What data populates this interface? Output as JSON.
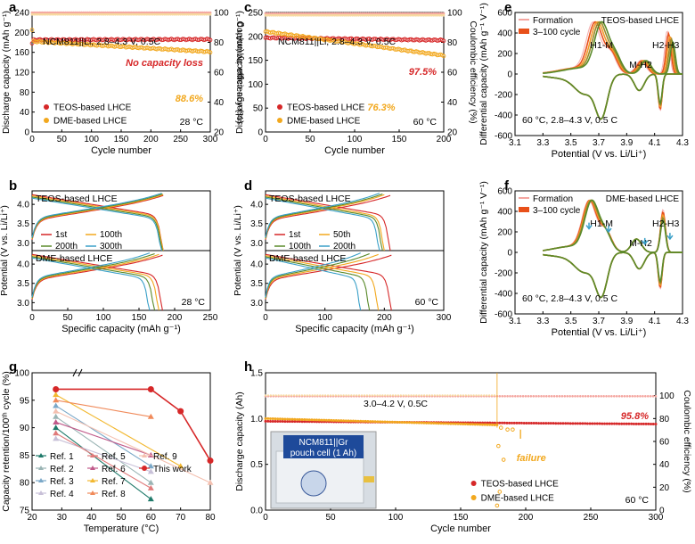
{
  "colors": {
    "red": "#d62728",
    "orange": "#f2a81e",
    "pink": "#f4a6a0",
    "green": "#5a8a2a",
    "gridgray": "#e6e6e6",
    "dashedgray": "#888888",
    "olive": "#9a9a2a",
    "cyan": "#3aa0c8"
  },
  "chart_data": [
    {
      "id": "a",
      "panel_label": "a",
      "type": "scatter",
      "title": "",
      "cell_text": "NCM811||Li, 2.8–4.3 V, 0.5C",
      "annotation_red": "No capacity loss",
      "annotation_orange": "88.6%",
      "temp": "28 °C",
      "xlabel": "Cycle number",
      "ylabel": "Discharge capacity (mAh g⁻¹)",
      "y2label": "Coulombic efficiency (%)",
      "xlim": [
        0,
        300
      ],
      "xticks": [
        0,
        50,
        100,
        150,
        200,
        250,
        300
      ],
      "ylim": [
        0,
        240
      ],
      "yticks": [
        0,
        40,
        80,
        120,
        160,
        200,
        240
      ],
      "y2lim": [
        20,
        100
      ],
      "y2ticks": [
        20,
        40,
        60,
        80,
        100
      ],
      "series": [
        {
          "name": "TEOS-based LHCE",
          "color": "red",
          "start": 185,
          "end": 186,
          "first": 178
        },
        {
          "name": "DME-based LHCE",
          "color": "orange",
          "start": 182,
          "end": 161,
          "first": 205
        }
      ],
      "ce": {
        "value": 99.6
      }
    },
    {
      "id": "c",
      "panel_label": "c",
      "type": "scatter",
      "cell_text": "NCM811||Li, 2.8–4.3 V, 0.5C",
      "annotation_red": "97.5%",
      "annotation_orange": "76.3%",
      "temp": "60 °C",
      "xlabel": "Cycle number",
      "ylabel": "Discharge capacity (mAh g⁻¹)",
      "y2label": "Coulombic efficiency (%)",
      "xlim": [
        0,
        200
      ],
      "xticks": [
        0,
        50,
        100,
        150,
        200
      ],
      "ylim": [
        0,
        250
      ],
      "yticks": [
        0,
        50,
        100,
        150,
        200,
        250
      ],
      "y2lim": [
        20,
        100
      ],
      "y2ticks": [
        20,
        40,
        60,
        80,
        100
      ],
      "series": [
        {
          "name": "TEOS-based LHCE",
          "color": "red",
          "start": 197,
          "end": 192
        },
        {
          "name": "DME-based LHCE",
          "color": "orange",
          "start": 210,
          "end": 160
        }
      ],
      "ce": {
        "value": 99.0
      }
    },
    {
      "id": "e",
      "panel_label": "e",
      "type": "line",
      "cell_text": "60 °C, 2.8–4.3 V, 0.5 C",
      "legend_title": "TEOS-based LHCE",
      "legend_formation": "Formation",
      "legend_cycles": "3–100 cycle",
      "peaks": [
        "H1-M",
        "M-H2",
        "H2-H3"
      ],
      "xlabel": "Potential (V vs. Li/Li⁺)",
      "ylabel": "Differential capacity (mAh g⁻¹ V⁻¹)",
      "xlim": [
        3.1,
        4.3
      ],
      "xticks": [
        "3.1",
        "3.3",
        "3.5",
        "3.7",
        "3.9",
        "4.1",
        "4.3"
      ],
      "ylim": [
        -600,
        600
      ],
      "yticks": [
        -600,
        -400,
        -200,
        0,
        200,
        400,
        600
      ]
    },
    {
      "id": "f",
      "panel_label": "f",
      "type": "line",
      "cell_text": "60 °C, 2.8–4.3 V, 0.5 C",
      "legend_title": "DME-based LHCE",
      "legend_formation": "Formation",
      "legend_cycles": "3–100 cycle",
      "peaks": [
        "H1-M",
        "M-H2",
        "H2-H3"
      ],
      "xlabel": "Potential (V vs. Li/Li⁺)",
      "ylabel": "Differential capacity (mAh g⁻¹ V⁻¹)",
      "xlim": [
        3.1,
        4.3
      ],
      "xticks": [
        "3.1",
        "3.3",
        "3.5",
        "3.7",
        "3.9",
        "4.1",
        "4.3"
      ],
      "ylim": [
        -600,
        600
      ],
      "yticks": [
        -600,
        -400,
        -200,
        0,
        200,
        400,
        600
      ]
    },
    {
      "id": "b",
      "panel_label": "b",
      "type": "line",
      "top_label": "TEOS-based LHCE",
      "bottom_label": "DME-based LHCE",
      "temp": "28 °C",
      "legend": [
        "1st",
        "100th",
        "200th",
        "300th"
      ],
      "xlabel": "Specific capacity (mAh g⁻¹)",
      "ylabel": "Potential (V vs. Li/Li⁺)",
      "xlim": [
        0,
        250
      ],
      "xticks": [
        0,
        50,
        100,
        150,
        200,
        250
      ],
      "yticks_top": [
        "3.0",
        "3.5",
        "4.0"
      ],
      "yticks_bottom": [
        "3.0",
        "3.5",
        "4.0"
      ],
      "top_caps": [
        184,
        184,
        183,
        182
      ],
      "bottom_caps": [
        183,
        178,
        172,
        165
      ]
    },
    {
      "id": "d",
      "panel_label": "d",
      "type": "line",
      "top_label": "TEOS-based LHCE",
      "bottom_label": "DME-based LHCE",
      "temp": "60 °C",
      "legend": [
        "1st",
        "50th",
        "100th",
        "200th"
      ],
      "xlabel": "Specific capacity (mAh g⁻¹)",
      "ylabel": "Potential (V vs. Li/Li⁺)",
      "xlim": [
        0,
        300
      ],
      "xticks": [
        0,
        100,
        200,
        300
      ],
      "yticks_top": [
        "3.0",
        "3.5",
        "4.0"
      ],
      "yticks_bottom": [
        "3.0",
        "3.5",
        "4.0"
      ],
      "top_caps": [
        210,
        200,
        197,
        192
      ],
      "bottom_caps": [
        212,
        190,
        175,
        160
      ]
    },
    {
      "id": "g",
      "panel_label": "g",
      "type": "scatter",
      "xlabel": "Temperature (°C)",
      "ylabel": "Capacity retention/100ᵗʰ cycle (%)",
      "xlim": [
        20,
        80
      ],
      "xticks": [
        20,
        30,
        40,
        50,
        60,
        70,
        80
      ],
      "ylim": [
        75,
        100
      ],
      "yticks": [
        75,
        80,
        85,
        90,
        95,
        100
      ],
      "series": [
        {
          "name": "Ref. 1",
          "color": "#1f7a6a",
          "points": [
            [
              28,
              90
            ],
            [
              60,
              77
            ]
          ]
        },
        {
          "name": "Ref. 2",
          "color": "#9ab4b4",
          "points": [
            [
              28,
              92
            ],
            [
              60,
              80
            ]
          ]
        },
        {
          "name": "Ref. 3",
          "color": "#7aa8c8",
          "points": [
            [
              28,
              94
            ],
            [
              60,
              83
            ]
          ]
        },
        {
          "name": "Ref. 4",
          "color": "#c8c0d8",
          "points": [
            [
              28,
              88
            ],
            [
              60,
              82
            ]
          ]
        },
        {
          "name": "Ref. 5",
          "color": "#e07a7a",
          "points": [
            [
              28,
              89
            ],
            [
              60,
              79
            ]
          ]
        },
        {
          "name": "Ref. 6",
          "color": "#c05a8a",
          "points": [
            [
              28,
              91
            ],
            [
              60,
              85
            ]
          ]
        },
        {
          "name": "Ref. 7",
          "color": "#f2b830",
          "points": [
            [
              28,
              96
            ],
            [
              70,
              83
            ]
          ]
        },
        {
          "name": "Ref. 8",
          "color": "#f08a5a",
          "points": [
            [
              28,
              95
            ],
            [
              60,
              92
            ]
          ]
        },
        {
          "name": "Ref. 9",
          "color": "#f4c0b0",
          "points": [
            [
              28,
              93
            ],
            [
              80,
              80
            ]
          ]
        },
        {
          "name": "This work",
          "color": "#d62728",
          "points": [
            [
              28,
              97
            ],
            [
              60,
              97
            ],
            [
              70,
              93
            ],
            [
              80,
              84
            ]
          ]
        }
      ]
    },
    {
      "id": "h",
      "panel_label": "h",
      "type": "scatter",
      "cell_text": "3.0–4.2 V, 0.5C",
      "annotation_red": "95.8%",
      "annotation_failure": "failure",
      "inset_title": "NCM811||Gr pouch cell (1 Ah)",
      "temp": "60 °C",
      "xlabel": "Cycle number",
      "ylabel": "Discharge capacity (Ah)",
      "y2label": "Coulombic efficiency (%)",
      "xlim": [
        0,
        300
      ],
      "xticks": [
        0,
        50,
        100,
        150,
        200,
        250,
        300
      ],
      "ylim": [
        0,
        1.5
      ],
      "yticks": [
        "0.0",
        "0.5",
        "1.0",
        "1.5"
      ],
      "y2lim": [
        0,
        120
      ],
      "y2ticks": [
        0,
        20,
        40,
        60,
        80,
        100
      ],
      "series": [
        {
          "name": "TEOS-based LHCE",
          "color": "red",
          "start": 0.97,
          "end": 0.94
        },
        {
          "name": "DME-based LHCE",
          "color": "orange",
          "start": 1.0,
          "end": 0.93,
          "fail_at": 178
        }
      ],
      "ce": {
        "value": 99.5
      }
    }
  ]
}
